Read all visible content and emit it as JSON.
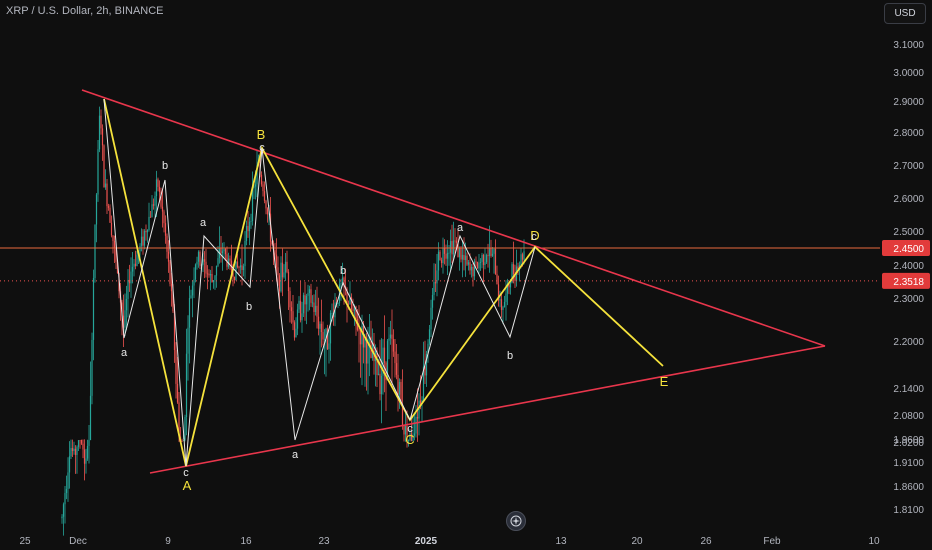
{
  "header": {
    "symbol_title": "XRP / U.S. Dollar, 2h, BINANCE"
  },
  "currency_button": {
    "label": "USD"
  },
  "colors": {
    "background": "#0f0f0f",
    "up_candle": "#26a69a",
    "down_candle": "#ef5350",
    "wave_lines": "#f5e23c",
    "sub_wave_lines": "#e8e8e8",
    "triangle_lines": "#e8364c",
    "horizontal_level": "#e8683c",
    "price_badge": "#e23b3b"
  },
  "chart_data": {
    "type": "candlestick",
    "title": "XRP / U.S. Dollar, 2h, BINANCE",
    "x_tick_labels": [
      "25",
      "Dec",
      "9",
      "16",
      "23",
      "2025",
      "13",
      "20",
      "26",
      "Feb",
      "10"
    ],
    "y_tick_labels": [
      "3.1000",
      "3.0000",
      "2.9000",
      "2.8000",
      "2.7000",
      "2.6000",
      "2.5000",
      "2.4000",
      "2.3000",
      "2.2000",
      "2.1400",
      "2.0800",
      "2.0200",
      "1.9600",
      "1.9100",
      "1.8600",
      "1.8100"
    ],
    "ylim": [
      1.79,
      3.15
    ],
    "price_badges": [
      {
        "value": "2.4500",
        "kind": "horizontal-level"
      },
      {
        "value": "2.3518",
        "kind": "last-price"
      }
    ],
    "price_path": [
      [
        1.8,
        0.0
      ],
      [
        1.95,
        0.02
      ],
      [
        1.92,
        0.04
      ],
      [
        2.0,
        0.06
      ],
      [
        1.9,
        0.08
      ],
      [
        2.02,
        0.1
      ],
      [
        2.3,
        0.12
      ],
      [
        2.85,
        0.16
      ],
      [
        2.7,
        0.19
      ],
      [
        2.55,
        0.22
      ],
      [
        2.35,
        0.25
      ],
      [
        2.25,
        0.28
      ],
      [
        2.45,
        0.31
      ],
      [
        2.55,
        0.34
      ],
      [
        2.62,
        0.37
      ],
      [
        2.4,
        0.4
      ],
      [
        2.15,
        0.43
      ],
      [
        1.95,
        0.46
      ],
      [
        2.25,
        0.49
      ],
      [
        2.45,
        0.52
      ],
      [
        2.38,
        0.55
      ],
      [
        2.42,
        0.58
      ],
      [
        2.45,
        0.61
      ],
      [
        2.35,
        0.64
      ],
      [
        2.55,
        0.67
      ],
      [
        2.72,
        0.7
      ],
      [
        2.55,
        0.73
      ],
      [
        2.35,
        0.76
      ],
      [
        2.2,
        0.79
      ],
      [
        2.3,
        0.82
      ],
      [
        2.2,
        0.85
      ],
      [
        2.28,
        0.88
      ],
      [
        2.32,
        0.91
      ],
      [
        2.25,
        0.94
      ],
      [
        2.2,
        0.97
      ],
      [
        2.15,
        1.0
      ]
    ],
    "path_notes": "price_path is [price, relative-progress] pairs describing the visible candle series shape",
    "wave_labels": {
      "major": [
        {
          "text": "A",
          "date_index": 6,
          "price": 1.88
        },
        {
          "text": "B",
          "date_index": 7,
          "price": 2.77
        },
        {
          "text": "C",
          "date_index": 9,
          "price": 2.0
        },
        {
          "text": "D",
          "date_index": 11,
          "price": 2.47
        },
        {
          "text": "E",
          "date_index": 12,
          "price": 2.11
        }
      ],
      "minor": [
        "a",
        "b",
        "c",
        "a",
        "b",
        "c",
        "a",
        "b",
        "c",
        "a",
        "b",
        "c"
      ]
    },
    "triangle": {
      "upper_line": {
        "from_price": 2.94,
        "to_price": 2.19
      },
      "lower_line": {
        "from_price": 1.885,
        "to_price": 2.19
      }
    },
    "horizontal_level": 2.45
  }
}
